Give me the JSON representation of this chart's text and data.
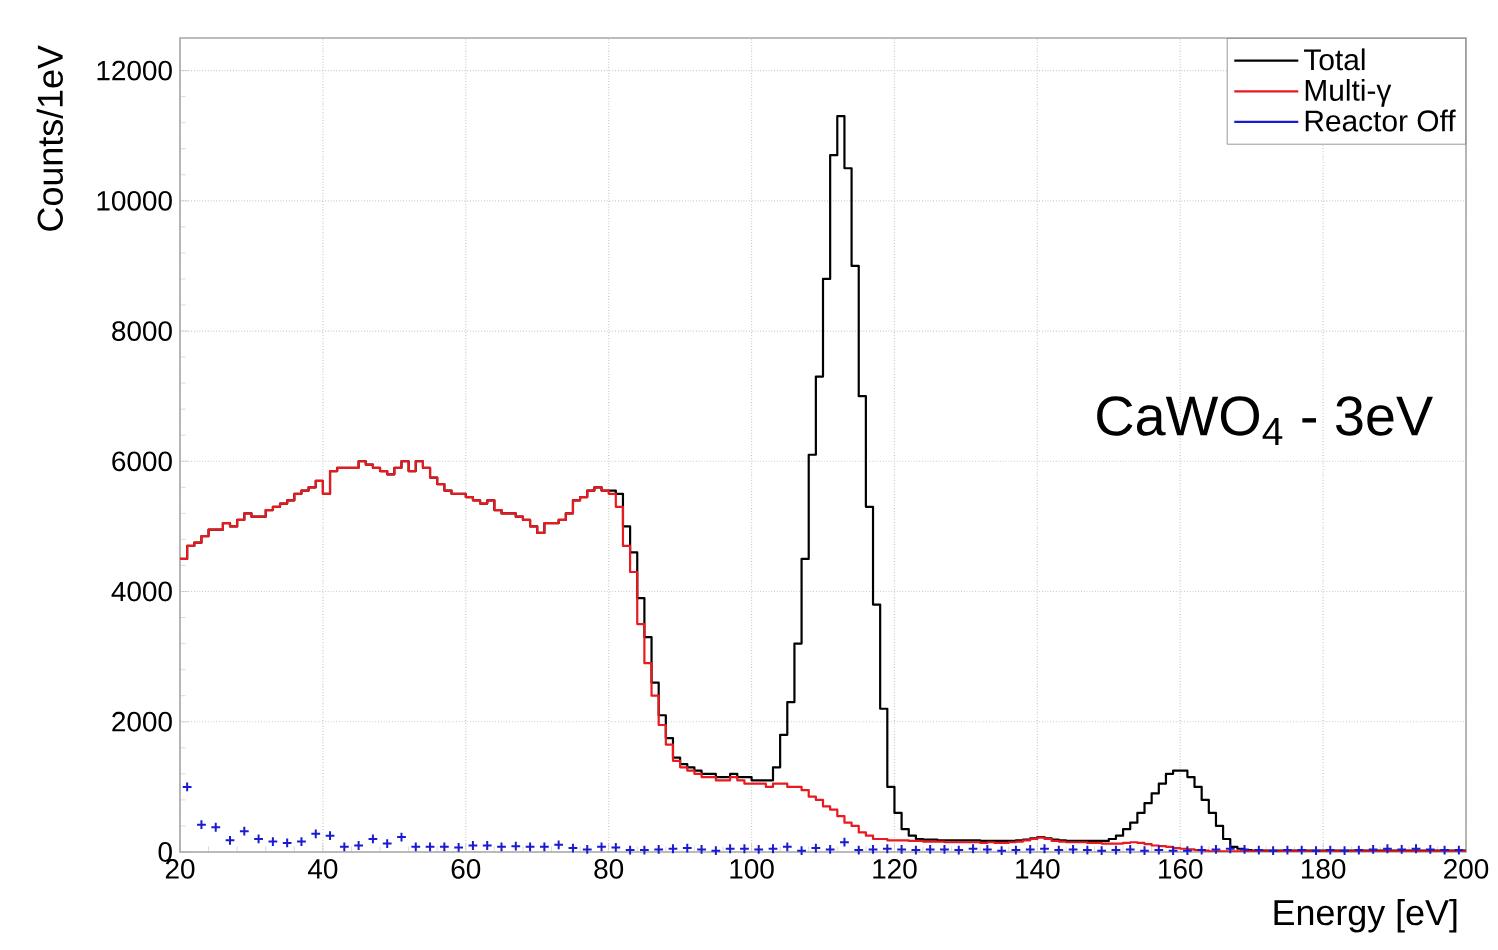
{
  "chart_data": {
    "type": "histogram",
    "xlabel": "Energy [eV]",
    "ylabel": "Counts/1eV",
    "annotations": [
      "CaWO$_{4}$ - 3eV"
    ],
    "xlim": [
      20,
      200
    ],
    "xticks": [
      20,
      40,
      60,
      80,
      100,
      120,
      140,
      160,
      180,
      200
    ],
    "ylim": [
      0,
      12500
    ],
    "yticks": [
      0,
      2000,
      4000,
      6000,
      8000,
      10000,
      12000
    ],
    "grid": true,
    "legend": "top right",
    "bins": [
      20,
      21,
      22,
      23,
      24,
      25,
      26,
      27,
      28,
      29,
      30,
      31,
      32,
      33,
      34,
      35,
      36,
      37,
      38,
      39,
      40,
      41,
      42,
      43,
      44,
      45,
      46,
      47,
      48,
      49,
      50,
      51,
      52,
      53,
      54,
      55,
      56,
      57,
      58,
      59,
      60,
      61,
      62,
      63,
      64,
      65,
      66,
      67,
      68,
      69,
      70,
      71,
      72,
      73,
      74,
      75,
      76,
      77,
      78,
      79,
      80,
      81,
      82,
      83,
      84,
      85,
      86,
      87,
      88,
      89,
      90,
      91,
      92,
      93,
      94,
      95,
      96,
      97,
      98,
      99,
      100,
      101,
      102,
      103,
      104,
      105,
      106,
      107,
      108,
      109,
      110,
      111,
      112,
      113,
      114,
      115,
      116,
      117,
      118,
      119,
      120,
      121,
      122,
      123,
      124,
      125,
      126,
      127,
      128,
      129,
      130,
      131,
      132,
      133,
      134,
      135,
      136,
      137,
      138,
      139,
      140,
      141,
      142,
      143,
      144,
      145,
      146,
      147,
      148,
      149,
      150,
      151,
      152,
      153,
      154,
      155,
      156,
      157,
      158,
      159,
      160,
      161,
      162,
      163,
      164,
      165,
      166,
      167,
      168,
      169,
      170,
      171,
      172,
      173,
      174,
      175,
      176,
      177,
      178,
      179,
      180,
      181,
      182,
      183,
      184,
      185,
      186,
      187,
      188,
      189,
      190,
      191,
      192,
      193,
      194,
      195,
      196,
      197,
      198,
      199,
      200
    ],
    "series": [
      {
        "name": "Total",
        "color": "#000000",
        "values": [
          4500,
          4700,
          4750,
          4850,
          4950,
          4950,
          5050,
          5000,
          5100,
          5200,
          5150,
          5150,
          5250,
          5300,
          5350,
          5400,
          5500,
          5550,
          5600,
          5700,
          5500,
          5850,
          5900,
          5900,
          5900,
          6000,
          5950,
          5900,
          5850,
          5800,
          5900,
          6000,
          5850,
          6000,
          5900,
          5750,
          5650,
          5550,
          5500,
          5500,
          5450,
          5400,
          5350,
          5400,
          5250,
          5200,
          5200,
          5150,
          5100,
          5000,
          4900,
          5050,
          5050,
          5100,
          5200,
          5400,
          5450,
          5550,
          5600,
          5550,
          5550,
          5500,
          5000,
          4600,
          3900,
          3300,
          2600,
          2100,
          1750,
          1450,
          1350,
          1300,
          1250,
          1200,
          1200,
          1150,
          1150,
          1200,
          1150,
          1150,
          1100,
          1100,
          1100,
          1300,
          1800,
          2300,
          3200,
          4500,
          6100,
          7300,
          8800,
          10700,
          11300,
          10500,
          9000,
          7000,
          5300,
          3800,
          2200,
          1000,
          600,
          350,
          250,
          200,
          190,
          190,
          180,
          180,
          180,
          180,
          180,
          180,
          170,
          170,
          170,
          170,
          170,
          180,
          190,
          210,
          230,
          210,
          190,
          180,
          170,
          170,
          170,
          170,
          170,
          170,
          200,
          250,
          350,
          450,
          600,
          750,
          900,
          1050,
          1200,
          1250,
          1250,
          1150,
          1000,
          800,
          600,
          400,
          200,
          80,
          50,
          30,
          20,
          20,
          20,
          20,
          20,
          20,
          20,
          20,
          20,
          20,
          20,
          20,
          20,
          20,
          20,
          20,
          20,
          20,
          20,
          20,
          20,
          20,
          20,
          20,
          20,
          20,
          20,
          20,
          20,
          20
        ]
      },
      {
        "name": "Multi-γ",
        "color": "#e8191f",
        "values": [
          4500,
          4700,
          4750,
          4850,
          4950,
          4950,
          5050,
          5000,
          5100,
          5200,
          5150,
          5150,
          5250,
          5300,
          5350,
          5400,
          5500,
          5550,
          5600,
          5700,
          5500,
          5850,
          5900,
          5900,
          5900,
          6000,
          5950,
          5900,
          5850,
          5800,
          5900,
          6000,
          5850,
          6000,
          5900,
          5750,
          5650,
          5550,
          5500,
          5500,
          5450,
          5400,
          5350,
          5400,
          5250,
          5200,
          5200,
          5150,
          5100,
          5000,
          4900,
          5050,
          5050,
          5100,
          5200,
          5400,
          5450,
          5550,
          5600,
          5550,
          5500,
          5300,
          4700,
          4300,
          3500,
          2900,
          2400,
          1950,
          1650,
          1400,
          1300,
          1250,
          1200,
          1150,
          1150,
          1100,
          1100,
          1150,
          1100,
          1050,
          1050,
          1050,
          1000,
          1050,
          1050,
          1000,
          1000,
          950,
          850,
          800,
          700,
          650,
          550,
          450,
          400,
          300,
          250,
          200,
          200,
          180,
          180,
          180,
          170,
          170,
          160,
          160,
          160,
          150,
          150,
          150,
          150,
          150,
          140,
          150,
          140,
          140,
          150,
          160,
          180,
          200,
          220,
          200,
          170,
          160,
          150,
          150,
          150,
          140,
          140,
          130,
          130,
          130,
          140,
          150,
          140,
          120,
          100,
          90,
          80,
          60,
          50,
          40,
          30,
          20,
          10,
          10,
          10,
          10,
          10,
          10,
          10,
          10,
          10,
          10,
          10,
          10,
          10,
          10,
          10,
          10,
          10,
          10,
          10,
          10,
          10,
          10,
          10,
          10,
          10,
          10,
          10,
          10,
          10,
          10,
          10,
          10,
          10,
          10,
          10,
          10
        ]
      },
      {
        "name": "Reactor Off",
        "type": "scatter",
        "color": "#1a1ad0",
        "marker": "cross",
        "x": [
          21,
          23,
          25,
          27,
          29,
          31,
          33,
          35,
          37,
          39,
          41,
          43,
          45,
          47,
          49,
          51,
          53,
          55,
          57,
          59,
          61,
          63,
          65,
          67,
          69,
          71,
          73,
          75,
          77,
          79,
          81,
          83,
          85,
          87,
          89,
          91,
          93,
          95,
          97,
          99,
          101,
          103,
          105,
          107,
          109,
          111,
          113,
          115,
          117,
          119,
          121,
          123,
          125,
          127,
          129,
          131,
          133,
          135,
          137,
          139,
          141,
          143,
          145,
          147,
          149,
          151,
          153,
          155,
          157,
          159,
          161,
          163,
          165,
          167,
          169,
          171,
          173,
          175,
          177,
          179,
          181,
          183,
          185,
          187,
          189,
          191,
          193,
          195,
          197,
          199
        ],
        "values": [
          1000,
          420,
          380,
          180,
          320,
          200,
          160,
          140,
          160,
          280,
          250,
          80,
          100,
          200,
          130,
          230,
          80,
          80,
          80,
          70,
          100,
          100,
          80,
          90,
          80,
          80,
          110,
          60,
          40,
          80,
          70,
          30,
          30,
          40,
          50,
          60,
          40,
          20,
          50,
          50,
          40,
          50,
          80,
          20,
          60,
          40,
          150,
          30,
          40,
          50,
          40,
          30,
          40,
          40,
          30,
          50,
          40,
          20,
          30,
          40,
          50,
          30,
          40,
          30,
          20,
          30,
          40,
          20,
          30,
          20,
          20,
          30,
          40,
          50,
          40,
          30,
          20,
          30,
          30,
          20,
          30,
          20,
          30,
          40,
          50,
          40,
          50,
          40,
          30,
          30
        ]
      }
    ]
  }
}
